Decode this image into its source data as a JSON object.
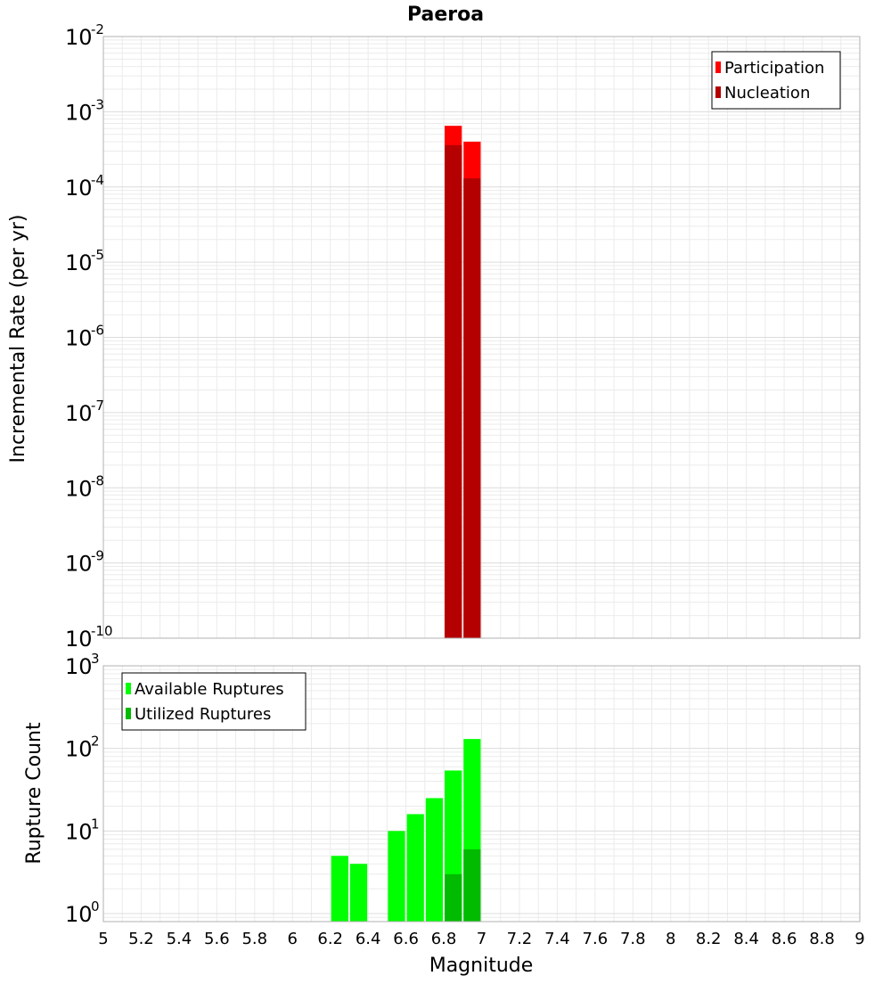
{
  "chart_data": [
    {
      "type": "bar",
      "title": "Paeroa",
      "ylabel": "Incremental Rate (per yr)",
      "xlabel": "",
      "xlim": [
        5,
        9
      ],
      "ylim": [
        1e-10,
        0.01
      ],
      "yscale": "log",
      "y_ticks": [
        {
          "base": "10",
          "exp": "-10"
        },
        {
          "base": "10",
          "exp": "-9"
        },
        {
          "base": "10",
          "exp": "-8"
        },
        {
          "base": "10",
          "exp": "-7"
        },
        {
          "base": "10",
          "exp": "-6"
        },
        {
          "base": "10",
          "exp": "-5"
        },
        {
          "base": "10",
          "exp": "-4"
        },
        {
          "base": "10",
          "exp": "-3"
        },
        {
          "base": "10",
          "exp": "-2"
        }
      ],
      "bin_width": 0.1,
      "grid": true,
      "legend_position": "top-right",
      "series": [
        {
          "name": "Participation",
          "color": "#ff0000",
          "x": [
            6.85,
            6.95
          ],
          "values": [
            0.00065,
            0.0004
          ]
        },
        {
          "name": "Nucleation",
          "color": "#b40000",
          "x": [
            6.85,
            6.95
          ],
          "values": [
            0.00036,
            0.00013
          ]
        }
      ]
    },
    {
      "type": "bar",
      "title": "",
      "ylabel": "Rupture Count",
      "xlabel": "Magnitude",
      "xlim": [
        5,
        9
      ],
      "ylim": [
        0.8,
        1000
      ],
      "yscale": "log",
      "y_ticks": [
        {
          "base": "10",
          "exp": "0"
        },
        {
          "base": "10",
          "exp": "1"
        },
        {
          "base": "10",
          "exp": "2"
        },
        {
          "base": "10",
          "exp": "3"
        }
      ],
      "x_ticks": [
        "5",
        "5.2",
        "5.4",
        "5.6",
        "5.8",
        "6",
        "6.2",
        "6.4",
        "6.6",
        "6.8",
        "7",
        "7.2",
        "7.4",
        "7.6",
        "7.8",
        "8",
        "8.2",
        "8.4",
        "8.6",
        "8.8",
        "9"
      ],
      "bin_width": 0.1,
      "grid": true,
      "legend_position": "top-left",
      "series": [
        {
          "name": "Available Ruptures",
          "color": "#00ff00",
          "x": [
            6.25,
            6.35,
            6.55,
            6.65,
            6.75,
            6.85,
            6.95
          ],
          "values": [
            5,
            4,
            10,
            16,
            25,
            54,
            130
          ]
        },
        {
          "name": "Utilized Ruptures",
          "color": "#00bb00",
          "x": [
            6.85,
            6.95
          ],
          "values": [
            3,
            6
          ]
        }
      ]
    }
  ]
}
